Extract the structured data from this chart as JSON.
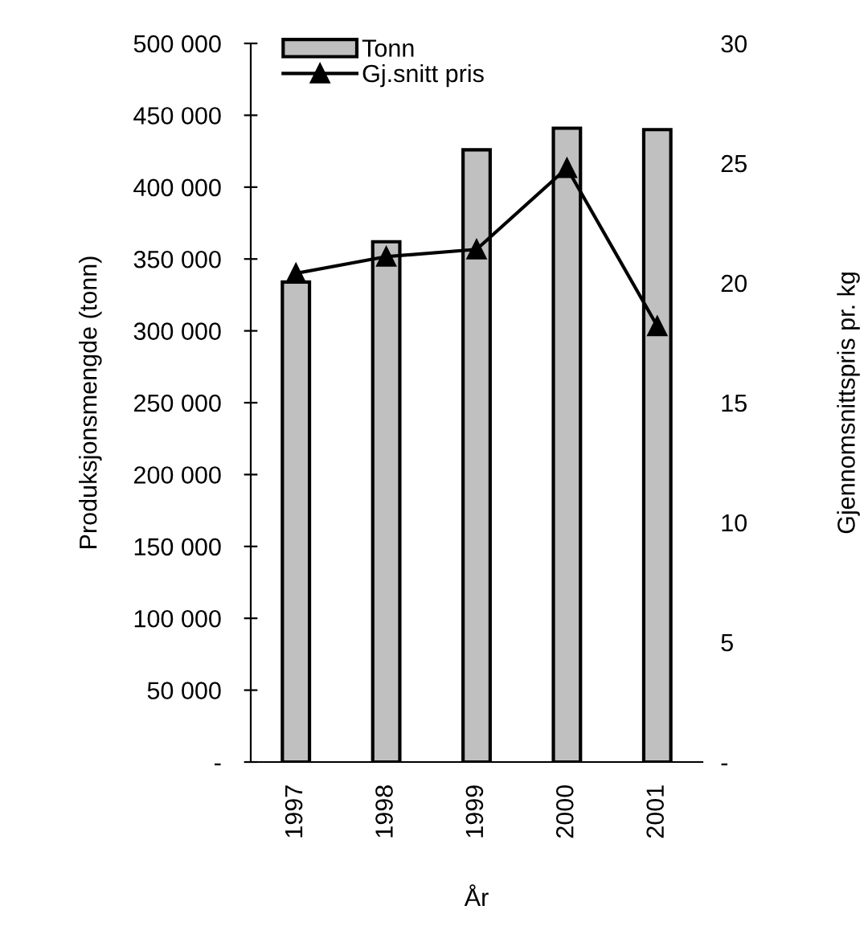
{
  "chart_data": {
    "type": "bar",
    "xlabel": "År",
    "ylabel": "Produksjonsmengde (tonn)",
    "y2label": "Gjennomsnittspris pr. kg",
    "categories": [
      "1997",
      "1998",
      "1999",
      "2000",
      "2001"
    ],
    "series": [
      {
        "name": "Tonn",
        "color": "#c0c0c0",
        "values": [
          334000,
          362000,
          426000,
          441000,
          440000
        ]
      },
      {
        "name": "Gj.snitt pris",
        "type": "line",
        "axis": "y2",
        "color": "#000000",
        "marker": "triangle",
        "values": [
          20.4,
          21.1,
          21.4,
          24.8,
          18.2
        ]
      }
    ],
    "ylim": [
      0,
      500000
    ],
    "yticks": [
      {
        "value": 0,
        "label": "-"
      },
      {
        "value": 50000,
        "label": "50 000"
      },
      {
        "value": 100000,
        "label": "100 000"
      },
      {
        "value": 150000,
        "label": "150 000"
      },
      {
        "value": 200000,
        "label": "200 000"
      },
      {
        "value": 250000,
        "label": "250 000"
      },
      {
        "value": 300000,
        "label": "300 000"
      },
      {
        "value": 350000,
        "label": "350 000"
      },
      {
        "value": 400000,
        "label": "400 000"
      },
      {
        "value": 450000,
        "label": "450 000"
      },
      {
        "value": 500000,
        "label": "500 000"
      }
    ],
    "y2lim": [
      0,
      30
    ],
    "y2ticks": [
      {
        "value": 0,
        "label": "-"
      },
      5,
      10,
      15,
      20,
      25,
      30
    ],
    "legend": "top left",
    "grid": false
  }
}
